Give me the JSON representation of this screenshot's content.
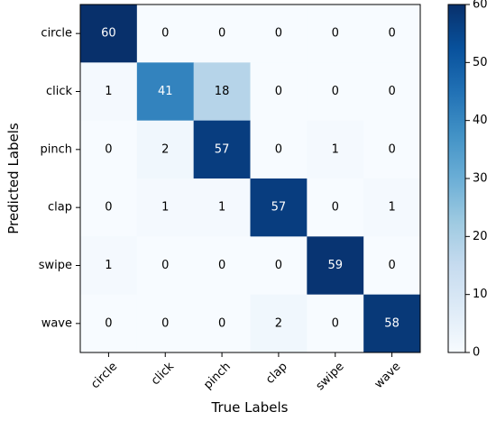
{
  "chart_data": {
    "type": "heatmap",
    "title": "",
    "xlabel": "True Labels",
    "ylabel": "Predicted Labels",
    "x_categories": [
      "circle",
      "click",
      "pinch",
      "clap",
      "swipe",
      "wave"
    ],
    "y_categories": [
      "circle",
      "click",
      "pinch",
      "clap",
      "swipe",
      "wave"
    ],
    "values": [
      [
        60,
        0,
        0,
        0,
        0,
        0
      ],
      [
        1,
        41,
        18,
        0,
        0,
        0
      ],
      [
        0,
        2,
        57,
        0,
        1,
        0
      ],
      [
        0,
        1,
        1,
        57,
        0,
        1
      ],
      [
        1,
        0,
        0,
        0,
        59,
        0
      ],
      [
        0,
        0,
        0,
        2,
        0,
        58
      ]
    ],
    "colorbar": {
      "min": 0,
      "max": 60,
      "ticks": [
        0,
        10,
        20,
        30,
        40,
        50,
        60
      ],
      "colormap": "Blues"
    },
    "grid": false,
    "legend": "colorbar-right"
  }
}
